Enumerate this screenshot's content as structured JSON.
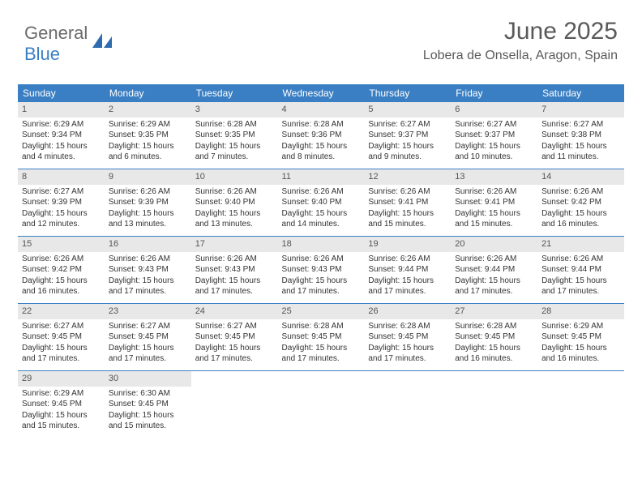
{
  "logo": {
    "text_general": "General",
    "text_blue": "Blue"
  },
  "header": {
    "month_title": "June 2025",
    "location": "Lobera de Onsella, Aragon, Spain"
  },
  "styling": {
    "header_bg": "#3a7fc4",
    "header_text": "#ffffff",
    "daynum_bg": "#e8e8e8",
    "body_text": "#333333",
    "title_color": "#5a5a5a",
    "week_border": "#3a7fc4",
    "page_bg": "#ffffff",
    "day_header_fontsize": 12,
    "cell_fontsize": 10,
    "title_fontsize": 30,
    "location_fontsize": 16
  },
  "day_headers": [
    "Sunday",
    "Monday",
    "Tuesday",
    "Wednesday",
    "Thursday",
    "Friday",
    "Saturday"
  ],
  "weeks": [
    [
      {
        "day": "1",
        "sunrise": "Sunrise: 6:29 AM",
        "sunset": "Sunset: 9:34 PM",
        "dl1": "Daylight: 15 hours",
        "dl2": "and 4 minutes."
      },
      {
        "day": "2",
        "sunrise": "Sunrise: 6:29 AM",
        "sunset": "Sunset: 9:35 PM",
        "dl1": "Daylight: 15 hours",
        "dl2": "and 6 minutes."
      },
      {
        "day": "3",
        "sunrise": "Sunrise: 6:28 AM",
        "sunset": "Sunset: 9:35 PM",
        "dl1": "Daylight: 15 hours",
        "dl2": "and 7 minutes."
      },
      {
        "day": "4",
        "sunrise": "Sunrise: 6:28 AM",
        "sunset": "Sunset: 9:36 PM",
        "dl1": "Daylight: 15 hours",
        "dl2": "and 8 minutes."
      },
      {
        "day": "5",
        "sunrise": "Sunrise: 6:27 AM",
        "sunset": "Sunset: 9:37 PM",
        "dl1": "Daylight: 15 hours",
        "dl2": "and 9 minutes."
      },
      {
        "day": "6",
        "sunrise": "Sunrise: 6:27 AM",
        "sunset": "Sunset: 9:37 PM",
        "dl1": "Daylight: 15 hours",
        "dl2": "and 10 minutes."
      },
      {
        "day": "7",
        "sunrise": "Sunrise: 6:27 AM",
        "sunset": "Sunset: 9:38 PM",
        "dl1": "Daylight: 15 hours",
        "dl2": "and 11 minutes."
      }
    ],
    [
      {
        "day": "8",
        "sunrise": "Sunrise: 6:27 AM",
        "sunset": "Sunset: 9:39 PM",
        "dl1": "Daylight: 15 hours",
        "dl2": "and 12 minutes."
      },
      {
        "day": "9",
        "sunrise": "Sunrise: 6:26 AM",
        "sunset": "Sunset: 9:39 PM",
        "dl1": "Daylight: 15 hours",
        "dl2": "and 13 minutes."
      },
      {
        "day": "10",
        "sunrise": "Sunrise: 6:26 AM",
        "sunset": "Sunset: 9:40 PM",
        "dl1": "Daylight: 15 hours",
        "dl2": "and 13 minutes."
      },
      {
        "day": "11",
        "sunrise": "Sunrise: 6:26 AM",
        "sunset": "Sunset: 9:40 PM",
        "dl1": "Daylight: 15 hours",
        "dl2": "and 14 minutes."
      },
      {
        "day": "12",
        "sunrise": "Sunrise: 6:26 AM",
        "sunset": "Sunset: 9:41 PM",
        "dl1": "Daylight: 15 hours",
        "dl2": "and 15 minutes."
      },
      {
        "day": "13",
        "sunrise": "Sunrise: 6:26 AM",
        "sunset": "Sunset: 9:41 PM",
        "dl1": "Daylight: 15 hours",
        "dl2": "and 15 minutes."
      },
      {
        "day": "14",
        "sunrise": "Sunrise: 6:26 AM",
        "sunset": "Sunset: 9:42 PM",
        "dl1": "Daylight: 15 hours",
        "dl2": "and 16 minutes."
      }
    ],
    [
      {
        "day": "15",
        "sunrise": "Sunrise: 6:26 AM",
        "sunset": "Sunset: 9:42 PM",
        "dl1": "Daylight: 15 hours",
        "dl2": "and 16 minutes."
      },
      {
        "day": "16",
        "sunrise": "Sunrise: 6:26 AM",
        "sunset": "Sunset: 9:43 PM",
        "dl1": "Daylight: 15 hours",
        "dl2": "and 17 minutes."
      },
      {
        "day": "17",
        "sunrise": "Sunrise: 6:26 AM",
        "sunset": "Sunset: 9:43 PM",
        "dl1": "Daylight: 15 hours",
        "dl2": "and 17 minutes."
      },
      {
        "day": "18",
        "sunrise": "Sunrise: 6:26 AM",
        "sunset": "Sunset: 9:43 PM",
        "dl1": "Daylight: 15 hours",
        "dl2": "and 17 minutes."
      },
      {
        "day": "19",
        "sunrise": "Sunrise: 6:26 AM",
        "sunset": "Sunset: 9:44 PM",
        "dl1": "Daylight: 15 hours",
        "dl2": "and 17 minutes."
      },
      {
        "day": "20",
        "sunrise": "Sunrise: 6:26 AM",
        "sunset": "Sunset: 9:44 PM",
        "dl1": "Daylight: 15 hours",
        "dl2": "and 17 minutes."
      },
      {
        "day": "21",
        "sunrise": "Sunrise: 6:26 AM",
        "sunset": "Sunset: 9:44 PM",
        "dl1": "Daylight: 15 hours",
        "dl2": "and 17 minutes."
      }
    ],
    [
      {
        "day": "22",
        "sunrise": "Sunrise: 6:27 AM",
        "sunset": "Sunset: 9:45 PM",
        "dl1": "Daylight: 15 hours",
        "dl2": "and 17 minutes."
      },
      {
        "day": "23",
        "sunrise": "Sunrise: 6:27 AM",
        "sunset": "Sunset: 9:45 PM",
        "dl1": "Daylight: 15 hours",
        "dl2": "and 17 minutes."
      },
      {
        "day": "24",
        "sunrise": "Sunrise: 6:27 AM",
        "sunset": "Sunset: 9:45 PM",
        "dl1": "Daylight: 15 hours",
        "dl2": "and 17 minutes."
      },
      {
        "day": "25",
        "sunrise": "Sunrise: 6:28 AM",
        "sunset": "Sunset: 9:45 PM",
        "dl1": "Daylight: 15 hours",
        "dl2": "and 17 minutes."
      },
      {
        "day": "26",
        "sunrise": "Sunrise: 6:28 AM",
        "sunset": "Sunset: 9:45 PM",
        "dl1": "Daylight: 15 hours",
        "dl2": "and 17 minutes."
      },
      {
        "day": "27",
        "sunrise": "Sunrise: 6:28 AM",
        "sunset": "Sunset: 9:45 PM",
        "dl1": "Daylight: 15 hours",
        "dl2": "and 16 minutes."
      },
      {
        "day": "28",
        "sunrise": "Sunrise: 6:29 AM",
        "sunset": "Sunset: 9:45 PM",
        "dl1": "Daylight: 15 hours",
        "dl2": "and 16 minutes."
      }
    ],
    [
      {
        "day": "29",
        "sunrise": "Sunrise: 6:29 AM",
        "sunset": "Sunset: 9:45 PM",
        "dl1": "Daylight: 15 hours",
        "dl2": "and 15 minutes."
      },
      {
        "day": "30",
        "sunrise": "Sunrise: 6:30 AM",
        "sunset": "Sunset: 9:45 PM",
        "dl1": "Daylight: 15 hours",
        "dl2": "and 15 minutes."
      },
      null,
      null,
      null,
      null,
      null
    ]
  ]
}
